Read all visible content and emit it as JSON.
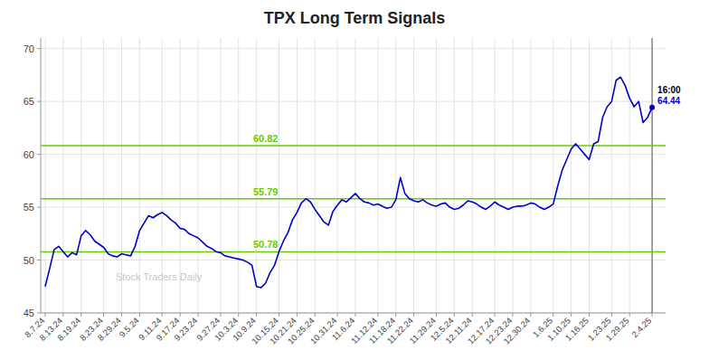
{
  "chart_data": {
    "type": "line",
    "title": "TPX Long Term Signals",
    "color": "#0000cc",
    "categories": [
      "8.7.24",
      null,
      null,
      null,
      "8.13.24",
      null,
      null,
      null,
      "8.19.24",
      null,
      null,
      null,
      null,
      "8.23.24",
      null,
      null,
      null,
      "8.29.24",
      null,
      null,
      null,
      "9.5.24",
      null,
      null,
      null,
      null,
      "9.11.24",
      null,
      null,
      null,
      "9.17.24",
      null,
      null,
      null,
      "9.23.24",
      null,
      null,
      null,
      null,
      "9.27.24",
      null,
      null,
      null,
      "10.3.24",
      null,
      null,
      null,
      "10.9.24",
      null,
      null,
      null,
      null,
      "10.15.24",
      null,
      null,
      null,
      "10.21.24",
      null,
      null,
      null,
      "10.25.24",
      null,
      null,
      null,
      null,
      "10.31.24",
      null,
      null,
      null,
      "11.6.24",
      null,
      null,
      null,
      null,
      "11.12.24",
      null,
      null,
      null,
      "11.18.24",
      null,
      null,
      null,
      "11.22.24",
      null,
      null,
      null,
      null,
      "11.29.24",
      null,
      null,
      null,
      "12.5.24",
      null,
      null,
      null,
      "12.11.24",
      null,
      null,
      null,
      null,
      "12.17.24",
      null,
      null,
      null,
      "12.23.24",
      null,
      null,
      null,
      "12.30.24",
      null,
      null,
      null,
      null,
      "1.6.25",
      null,
      null,
      null,
      "1.10.25",
      null,
      null,
      null,
      "1.16.25",
      null,
      null,
      null,
      null,
      "1.23.25",
      null,
      null,
      null,
      "1.29.25",
      null,
      null,
      null,
      null,
      "2.4.25"
    ],
    "values": [
      47.5,
      49.2,
      51.0,
      51.3,
      50.8,
      50.3,
      50.7,
      50.5,
      52.3,
      52.8,
      52.4,
      51.8,
      51.5,
      51.2,
      50.6,
      50.4,
      50.3,
      50.6,
      50.5,
      50.4,
      51.3,
      52.8,
      53.5,
      54.2,
      54.0,
      54.3,
      54.5,
      54.2,
      53.8,
      53.5,
      53.0,
      52.9,
      52.5,
      52.3,
      52.1,
      51.7,
      51.3,
      51.1,
      50.8,
      50.7,
      50.4,
      50.3,
      50.2,
      50.1,
      50.0,
      49.8,
      49.5,
      47.5,
      47.4,
      47.8,
      48.8,
      49.5,
      50.8,
      51.8,
      52.6,
      53.8,
      54.5,
      55.4,
      55.8,
      55.5,
      54.8,
      54.2,
      53.6,
      53.3,
      54.6,
      55.2,
      55.7,
      55.5,
      55.9,
      56.3,
      55.8,
      55.5,
      55.4,
      55.2,
      55.3,
      55.1,
      54.9,
      55.0,
      55.7,
      57.8,
      56.3,
      55.8,
      55.6,
      55.5,
      55.7,
      55.4,
      55.2,
      55.1,
      55.3,
      55.4,
      55.0,
      54.8,
      54.9,
      55.2,
      55.6,
      55.5,
      55.3,
      55.0,
      54.8,
      55.1,
      55.5,
      55.2,
      55.0,
      54.8,
      55.0,
      55.1,
      55.1,
      55.2,
      55.4,
      55.3,
      55.0,
      54.8,
      55.0,
      55.3,
      57.0,
      58.5,
      59.5,
      60.5,
      61.0,
      60.5,
      60.0,
      59.5,
      61.0,
      61.2,
      63.5,
      64.5,
      65.0,
      67.0,
      67.3,
      66.5,
      65.3,
      64.5,
      65.0,
      63.0,
      63.5,
      64.44
    ],
    "hlines": [
      {
        "value": 50.78,
        "label": "50.78",
        "color": "#66cc00"
      },
      {
        "value": 55.79,
        "label": "55.79",
        "color": "#66cc00"
      },
      {
        "value": 60.82,
        "label": "60.82",
        "color": "#66cc00"
      }
    ],
    "annotations": [
      {
        "text": "16:00",
        "color": "#000000"
      },
      {
        "text": "64.44",
        "color": "#0000cc"
      }
    ],
    "watermark": {
      "text": "Stock Traders Daily",
      "color": "#aaaaaa"
    },
    "ylim": [
      45,
      71
    ],
    "yticks": [
      45,
      50,
      55,
      60,
      65,
      70
    ],
    "grid": true
  }
}
